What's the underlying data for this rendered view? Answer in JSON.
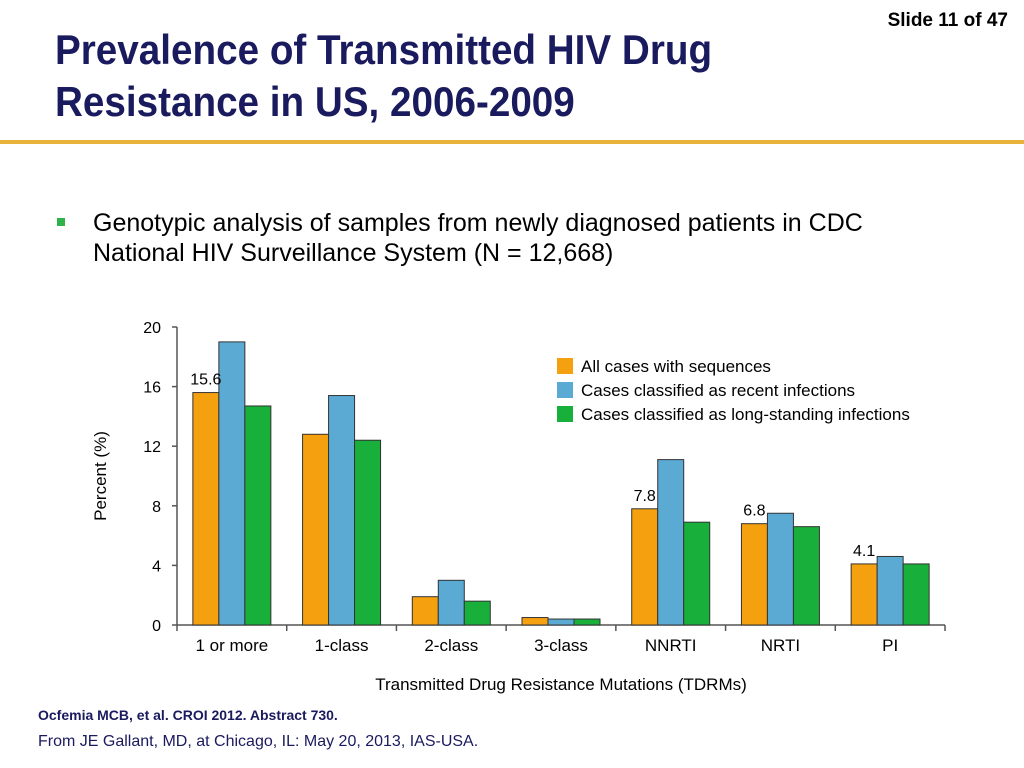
{
  "slide": {
    "number_label": "Slide 11 of 47"
  },
  "title": {
    "line1": "Prevalence of Transmitted HIV Drug",
    "line2": "Resistance in US, 2006-2009"
  },
  "bullet": {
    "text": "Genotypic analysis of samples from newly diagnosed patients in CDC National HIV Surveillance System (N = 12,668)"
  },
  "colors": {
    "accent_rule": "#e8b33a",
    "title": "#1a1a5e",
    "bullet": "#2db34a"
  },
  "chart_data": {
    "type": "bar",
    "title": "",
    "xlabel": "Transmitted Drug Resistance Mutations (TDRMs)",
    "ylabel": "Percent (%)",
    "ylim": [
      0,
      20
    ],
    "yticks": [
      0,
      4,
      8,
      12,
      16,
      20
    ],
    "categories": [
      "1 or more",
      "1-class",
      "2-class",
      "3-class",
      "NNRTI",
      "NRTI",
      "PI"
    ],
    "legend_position": "top-right",
    "series": [
      {
        "name": "All cases with sequences",
        "color": "#f5a00f",
        "values": [
          15.6,
          12.8,
          1.9,
          0.5,
          7.8,
          6.8,
          4.1
        ]
      },
      {
        "name": "Cases classified as recent infections",
        "color": "#5aaad4",
        "values": [
          19.0,
          15.4,
          3.0,
          0.4,
          11.1,
          7.5,
          4.6
        ]
      },
      {
        "name": "Cases classified as long-standing infections",
        "color": "#18b03a",
        "values": [
          14.7,
          12.4,
          1.6,
          0.4,
          6.9,
          6.6,
          4.1
        ]
      }
    ],
    "data_labels": [
      {
        "category": "1 or more",
        "series": 0,
        "text": "15.6"
      },
      {
        "category": "NNRTI",
        "series": 0,
        "text": "7.8"
      },
      {
        "category": "NRTI",
        "series": 0,
        "text": "6.8"
      },
      {
        "category": "PI",
        "series": 0,
        "text": "4.1"
      }
    ]
  },
  "footer": {
    "citation": "Ocfemia MCB, et al. CROI 2012. Abstract 730.",
    "credit": "From JE Gallant, MD, at Chicago, IL: May 20, 2013, IAS-USA."
  }
}
